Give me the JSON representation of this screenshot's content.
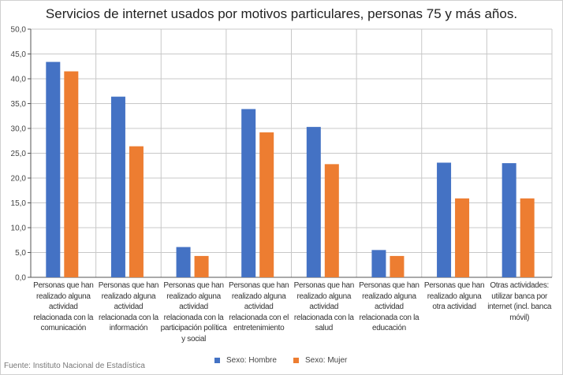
{
  "chart_data": {
    "type": "bar",
    "title": "Servicios de internet usados por motivos particulares, personas 75 y más años.",
    "categories": [
      "Personas que han realizado alguna actividad relacionada con la comunicación",
      "Personas que han realizado alguna actividad relacionada con la información",
      "Personas que han realizado alguna actividad relacionada con la participación política y social",
      "Personas que han realizado alguna actividad relacionada con el entretenimiento",
      "Personas que han realizado alguna actividad relacionada con la salud",
      "Personas que han realizado alguna actividad relacionada con la educación",
      "Personas que han realizado alguna otra actividad",
      "Otras actividades: utilizar banca por internet (incl. banca móvil)"
    ],
    "series": [
      {
        "name": "Sexo: Hombre",
        "color": "#4472C4",
        "values": [
          43.4,
          36.4,
          6.1,
          33.9,
          30.3,
          5.5,
          23.1,
          23.0
        ]
      },
      {
        "name": "Sexo: Mujer",
        "color": "#ED7D31",
        "values": [
          41.5,
          26.4,
          4.3,
          29.2,
          22.8,
          4.3,
          15.9,
          15.9
        ]
      }
    ],
    "xlabel": "",
    "ylabel": "",
    "ylim": [
      0,
      50
    ],
    "yticks": [
      "0,0",
      "5,0",
      "10,0",
      "15,0",
      "20,0",
      "25,0",
      "30,0",
      "35,0",
      "40,0",
      "45,0",
      "50,0"
    ],
    "grid": true,
    "legend_position": "bottom"
  },
  "source": "Fuente: Instituto Nacional de Estadística"
}
